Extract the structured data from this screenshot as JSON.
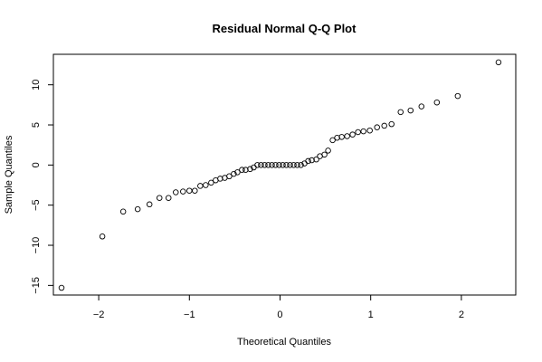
{
  "chart_data": {
    "type": "scatter",
    "title": "Residual Normal Q-Q Plot",
    "xlabel": "Theoretical Quantiles",
    "ylabel": "Sample Quantiles",
    "xlim": [
      -2.5,
      2.6
    ],
    "ylim": [
      -16.2,
      13.8
    ],
    "xticks": [
      -2,
      -1,
      0,
      1,
      2
    ],
    "yticks": [
      -15,
      -10,
      -5,
      0,
      5,
      10
    ],
    "xtick_labels": [
      "−2",
      "−1",
      "0",
      "1",
      "2"
    ],
    "ytick_labels": [
      "−15",
      "−10",
      "−5",
      "0",
      "5",
      "10"
    ],
    "grid": false,
    "points": [
      [
        -2.41,
        -15.3
      ],
      [
        -1.96,
        -8.9
      ],
      [
        -1.73,
        -5.8
      ],
      [
        -1.57,
        -5.5
      ],
      [
        -1.44,
        -4.9
      ],
      [
        -1.33,
        -4.1
      ],
      [
        -1.23,
        -4.1
      ],
      [
        -1.15,
        -3.4
      ],
      [
        -1.07,
        -3.3
      ],
      [
        -1.0,
        -3.2
      ],
      [
        -0.94,
        -3.2
      ],
      [
        -0.88,
        -2.6
      ],
      [
        -0.82,
        -2.5
      ],
      [
        -0.76,
        -2.2
      ],
      [
        -0.71,
        -1.9
      ],
      [
        -0.66,
        -1.7
      ],
      [
        -0.61,
        -1.6
      ],
      [
        -0.56,
        -1.4
      ],
      [
        -0.51,
        -1.1
      ],
      [
        -0.47,
        -0.9
      ],
      [
        -0.42,
        -0.6
      ],
      [
        -0.38,
        -0.6
      ],
      [
        -0.33,
        -0.5
      ],
      [
        -0.29,
        -0.3
      ],
      [
        -0.25,
        0.0
      ],
      [
        -0.21,
        0.0
      ],
      [
        -0.17,
        0.0
      ],
      [
        -0.13,
        0.0
      ],
      [
        -0.09,
        0.0
      ],
      [
        -0.05,
        0.0
      ],
      [
        -0.01,
        0.0
      ],
      [
        0.03,
        0.0
      ],
      [
        0.07,
        0.0
      ],
      [
        0.11,
        0.0
      ],
      [
        0.15,
        0.0
      ],
      [
        0.19,
        0.0
      ],
      [
        0.23,
        0.0
      ],
      [
        0.27,
        0.2
      ],
      [
        0.31,
        0.5
      ],
      [
        0.35,
        0.6
      ],
      [
        0.4,
        0.7
      ],
      [
        0.44,
        1.1
      ],
      [
        0.49,
        1.3
      ],
      [
        0.53,
        1.8
      ],
      [
        0.58,
        3.1
      ],
      [
        0.63,
        3.4
      ],
      [
        0.68,
        3.5
      ],
      [
        0.74,
        3.6
      ],
      [
        0.8,
        3.8
      ],
      [
        0.86,
        4.1
      ],
      [
        0.92,
        4.2
      ],
      [
        0.99,
        4.3
      ],
      [
        1.07,
        4.7
      ],
      [
        1.15,
        4.9
      ],
      [
        1.23,
        5.1
      ],
      [
        1.33,
        6.6
      ],
      [
        1.44,
        6.8
      ],
      [
        1.56,
        7.3
      ],
      [
        1.73,
        7.8
      ],
      [
        1.96,
        8.6
      ],
      [
        2.41,
        12.8
      ]
    ]
  }
}
